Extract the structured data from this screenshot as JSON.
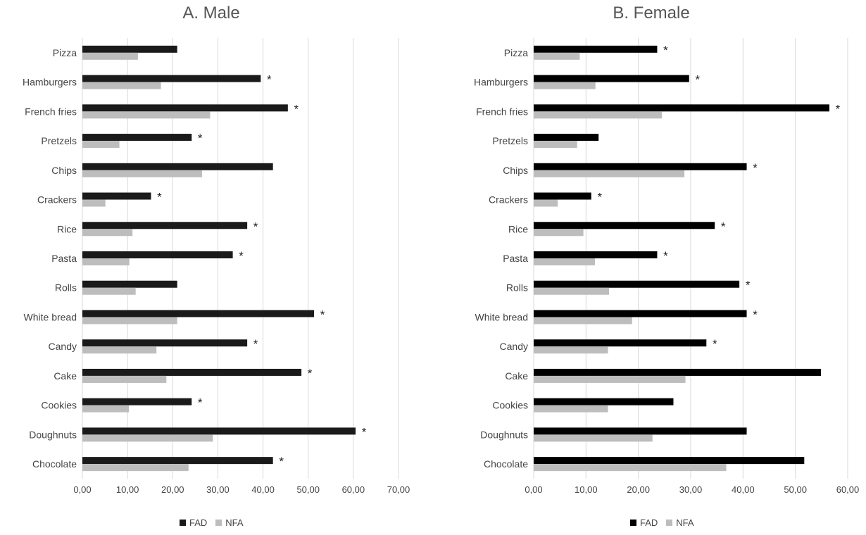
{
  "chart_data": [
    {
      "type": "bar",
      "orientation": "horizontal",
      "title": "A. Male",
      "categories": [
        "Pizza",
        "Hamburgers",
        "French fries",
        "Pretzels",
        "Chips",
        "Crackers",
        "Rice",
        "Pasta",
        "Rolls",
        "White bread",
        "Candy",
        "Cake",
        "Cookies",
        "Doughnuts",
        "Chocolate"
      ],
      "series": [
        {
          "name": "FAD",
          "color": "#1a1a1a",
          "values": [
            21.0,
            39.5,
            45.5,
            24.2,
            42.2,
            15.2,
            36.5,
            33.3,
            21.0,
            51.3,
            36.5,
            48.5,
            24.2,
            60.5,
            42.2
          ]
        },
        {
          "name": "NFA",
          "color": "#bdbdbd",
          "values": [
            12.3,
            17.4,
            28.3,
            8.2,
            26.5,
            5.1,
            11.1,
            10.4,
            11.8,
            21.0,
            16.4,
            18.6,
            10.3,
            28.9,
            23.5
          ]
        }
      ],
      "significant": [
        false,
        true,
        true,
        true,
        false,
        true,
        true,
        true,
        false,
        true,
        true,
        true,
        true,
        true,
        true
      ],
      "significance_marker": "*",
      "xlim": [
        0,
        70
      ],
      "xticks": [
        "0,00",
        "10,00",
        "20,00",
        "30,00",
        "40,00",
        "50,00",
        "60,00",
        "70,00"
      ],
      "grid": true,
      "legend_position": "bottom"
    },
    {
      "type": "bar",
      "orientation": "horizontal",
      "title": "B. Female",
      "categories": [
        "Pizza",
        "Hamburgers",
        "French fries",
        "Pretzels",
        "Chips",
        "Crackers",
        "Rice",
        "Pasta",
        "Rolls",
        "White bread",
        "Candy",
        "Cake",
        "Cookies",
        "Doughnuts",
        "Chocolate"
      ],
      "series": [
        {
          "name": "FAD",
          "color": "#000000",
          "values": [
            23.6,
            29.7,
            56.5,
            12.4,
            40.7,
            11.0,
            34.6,
            23.6,
            39.3,
            40.7,
            33.0,
            54.9,
            26.7,
            40.7,
            51.7
          ]
        },
        {
          "name": "NFA",
          "color": "#bdbdbd",
          "values": [
            8.8,
            11.8,
            24.5,
            8.3,
            28.8,
            4.6,
            9.5,
            11.7,
            14.4,
            18.8,
            14.2,
            29.0,
            14.2,
            22.7,
            36.8
          ]
        }
      ],
      "significant": [
        true,
        true,
        true,
        false,
        true,
        true,
        true,
        true,
        true,
        true,
        true,
        false,
        false,
        false,
        false
      ],
      "significance_marker": "*",
      "xlim": [
        0,
        60
      ],
      "xticks": [
        "0,00",
        "10,00",
        "20,00",
        "30,00",
        "40,00",
        "50,00",
        "60,00"
      ],
      "grid": true,
      "legend_position": "bottom"
    }
  ]
}
